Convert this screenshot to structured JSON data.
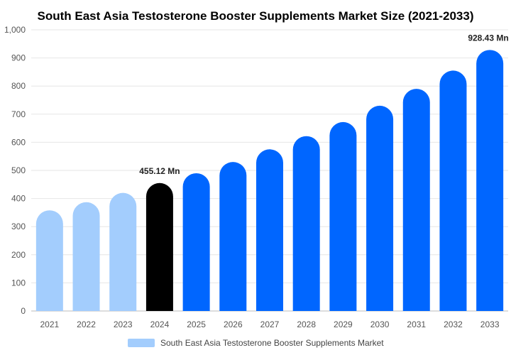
{
  "chart_data": {
    "type": "bar",
    "title": "South East Asia Testosterone Booster Supplements Market Size (2021-2033)",
    "xlabel": "",
    "ylabel": "",
    "categories": [
      "2021",
      "2022",
      "2023",
      "2024",
      "2025",
      "2026",
      "2027",
      "2028",
      "2029",
      "2030",
      "2031",
      "2032",
      "2033"
    ],
    "series": [
      {
        "name": "South East Asia Testosterone Booster Supplements Market",
        "values": [
          358,
          387,
          420,
          455.12,
          490,
          530,
          575,
          622,
          672,
          730,
          790,
          855,
          928.43
        ]
      }
    ],
    "ylim": [
      0,
      1000
    ],
    "yticks": [
      "0",
      "100",
      "200",
      "300",
      "400",
      "500",
      "600",
      "700",
      "800",
      "900",
      "1,000"
    ],
    "data_labels": [
      {
        "category": "2024",
        "text": "455.12 Mn"
      },
      {
        "category": "2033",
        "text": "928.43 Mn"
      }
    ],
    "bar_colors": {
      "historical": "#a3cdfd",
      "current": "#000000",
      "forecast": "#0066ff"
    },
    "grid": "horizontal",
    "legend": {
      "placement": "bottom",
      "color": "#a3cdfd"
    }
  }
}
